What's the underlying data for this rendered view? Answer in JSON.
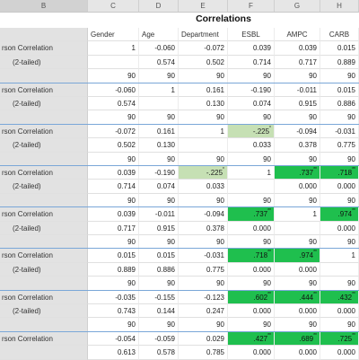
{
  "column_letters": [
    "B",
    "C",
    "D",
    "E",
    "F",
    "G",
    "H"
  ],
  "table": {
    "title": "Correlations",
    "headers": [
      "",
      "Gender",
      "Age",
      "Department",
      "ESBL",
      "AMPC",
      "CARB"
    ],
    "rows": [
      {
        "label": "rson Correlation",
        "cells": [
          {
            "v": "1"
          },
          {
            "v": "-0.060"
          },
          {
            "v": "-0.072"
          },
          {
            "v": "0.039"
          },
          {
            "v": "0.039"
          },
          {
            "v": "0.015"
          }
        ]
      },
      {
        "label": "(2-tailed)",
        "cells": [
          {
            "v": ""
          },
          {
            "v": "0.574"
          },
          {
            "v": "0.502"
          },
          {
            "v": "0.714"
          },
          {
            "v": "0.717"
          },
          {
            "v": "0.889"
          }
        ]
      },
      {
        "label": "",
        "cells": [
          {
            "v": "90"
          },
          {
            "v": "90"
          },
          {
            "v": "90"
          },
          {
            "v": "90"
          },
          {
            "v": "90"
          },
          {
            "v": "90"
          }
        ]
      },
      {
        "label": "rson Correlation",
        "cells": [
          {
            "v": "-0.060"
          },
          {
            "v": "1"
          },
          {
            "v": "0.161"
          },
          {
            "v": "-0.190"
          },
          {
            "v": "-0.011"
          },
          {
            "v": "0.015"
          }
        ]
      },
      {
        "label": "(2-tailed)",
        "cells": [
          {
            "v": "0.574"
          },
          {
            "v": ""
          },
          {
            "v": "0.130"
          },
          {
            "v": "0.074"
          },
          {
            "v": "0.915"
          },
          {
            "v": "0.886"
          }
        ]
      },
      {
        "label": "",
        "cells": [
          {
            "v": "90"
          },
          {
            "v": "90"
          },
          {
            "v": "90"
          },
          {
            "v": "90"
          },
          {
            "v": "90"
          },
          {
            "v": "90"
          }
        ]
      },
      {
        "label": "rson Correlation",
        "cells": [
          {
            "v": "-0.072"
          },
          {
            "v": "0.161"
          },
          {
            "v": "1"
          },
          {
            "v": "-.225",
            "sup": "*",
            "hl": "g1"
          },
          {
            "v": "-0.094"
          },
          {
            "v": "-0.031"
          }
        ]
      },
      {
        "label": "(2-tailed)",
        "cells": [
          {
            "v": "0.502"
          },
          {
            "v": "0.130"
          },
          {
            "v": ""
          },
          {
            "v": "0.033"
          },
          {
            "v": "0.378"
          },
          {
            "v": "0.775"
          }
        ]
      },
      {
        "label": "",
        "cells": [
          {
            "v": "90"
          },
          {
            "v": "90"
          },
          {
            "v": "90"
          },
          {
            "v": "90"
          },
          {
            "v": "90"
          },
          {
            "v": "90"
          }
        ]
      },
      {
        "label": "rson Correlation",
        "cells": [
          {
            "v": "0.039"
          },
          {
            "v": "-0.190"
          },
          {
            "v": "-.225",
            "sup": "*",
            "hl": "g1"
          },
          {
            "v": "1"
          },
          {
            "v": ".737",
            "sup": "**",
            "hl": "g2"
          },
          {
            "v": ".718",
            "sup": "**",
            "hl": "g2"
          }
        ]
      },
      {
        "label": "(2-tailed)",
        "cells": [
          {
            "v": "0.714"
          },
          {
            "v": "0.074"
          },
          {
            "v": "0.033"
          },
          {
            "v": ""
          },
          {
            "v": "0.000"
          },
          {
            "v": "0.000"
          }
        ]
      },
      {
        "label": "",
        "cells": [
          {
            "v": "90"
          },
          {
            "v": "90"
          },
          {
            "v": "90"
          },
          {
            "v": "90"
          },
          {
            "v": "90"
          },
          {
            "v": "90"
          }
        ]
      },
      {
        "label": "rson Correlation",
        "cells": [
          {
            "v": "0.039"
          },
          {
            "v": "-0.011"
          },
          {
            "v": "-0.094"
          },
          {
            "v": ".737",
            "sup": "**",
            "hl": "g2"
          },
          {
            "v": "1"
          },
          {
            "v": ".974",
            "sup": "**",
            "hl": "g2"
          }
        ]
      },
      {
        "label": "(2-tailed)",
        "cells": [
          {
            "v": "0.717"
          },
          {
            "v": "0.915"
          },
          {
            "v": "0.378"
          },
          {
            "v": "0.000"
          },
          {
            "v": ""
          },
          {
            "v": "0.000"
          }
        ]
      },
      {
        "label": "",
        "cells": [
          {
            "v": "90"
          },
          {
            "v": "90"
          },
          {
            "v": "90"
          },
          {
            "v": "90"
          },
          {
            "v": "90"
          },
          {
            "v": "90"
          }
        ]
      },
      {
        "label": "rson Correlation",
        "cells": [
          {
            "v": "0.015"
          },
          {
            "v": "0.015"
          },
          {
            "v": "-0.031"
          },
          {
            "v": ".718",
            "sup": "**",
            "hl": "g2"
          },
          {
            "v": ".974",
            "sup": "**",
            "hl": "g2"
          },
          {
            "v": "1"
          }
        ]
      },
      {
        "label": "(2-tailed)",
        "cells": [
          {
            "v": "0.889"
          },
          {
            "v": "0.886"
          },
          {
            "v": "0.775"
          },
          {
            "v": "0.000"
          },
          {
            "v": "0.000"
          },
          {
            "v": ""
          }
        ]
      },
      {
        "label": "",
        "cells": [
          {
            "v": "90"
          },
          {
            "v": "90"
          },
          {
            "v": "90"
          },
          {
            "v": "90"
          },
          {
            "v": "90"
          },
          {
            "v": "90"
          }
        ]
      },
      {
        "label": "rson Correlation",
        "cells": [
          {
            "v": "-0.035"
          },
          {
            "v": "-0.155"
          },
          {
            "v": "-0.123"
          },
          {
            "v": ".602",
            "sup": "**",
            "hl": "g2"
          },
          {
            "v": ".444",
            "sup": "**",
            "hl": "g2"
          },
          {
            "v": ".432",
            "sup": "**",
            "hl": "g2"
          }
        ]
      },
      {
        "label": "(2-tailed)",
        "cells": [
          {
            "v": "0.743"
          },
          {
            "v": "0.144"
          },
          {
            "v": "0.247"
          },
          {
            "v": "0.000"
          },
          {
            "v": "0.000"
          },
          {
            "v": "0.000"
          }
        ]
      },
      {
        "label": "",
        "cells": [
          {
            "v": "90"
          },
          {
            "v": "90"
          },
          {
            "v": "90"
          },
          {
            "v": "90"
          },
          {
            "v": "90"
          },
          {
            "v": "90"
          }
        ]
      },
      {
        "label": "rson Correlation",
        "cells": [
          {
            "v": "-0.054"
          },
          {
            "v": "-0.059"
          },
          {
            "v": "0.029"
          },
          {
            "v": ".427",
            "sup": "**",
            "hl": "g2"
          },
          {
            "v": ".689",
            "sup": "**",
            "hl": "g2"
          },
          {
            "v": ".725",
            "sup": "**",
            "hl": "g2"
          }
        ]
      },
      {
        "label": "",
        "cells": [
          {
            "v": "0.613"
          },
          {
            "v": "0.578"
          },
          {
            "v": "0.785"
          },
          {
            "v": "0.000"
          },
          {
            "v": "0.000"
          },
          {
            "v": "0.000"
          }
        ]
      }
    ]
  },
  "colors": {
    "light_green": "#c6e0b4",
    "bright_green": "#1fbf4e",
    "label_gray": "#e2e2e2"
  }
}
